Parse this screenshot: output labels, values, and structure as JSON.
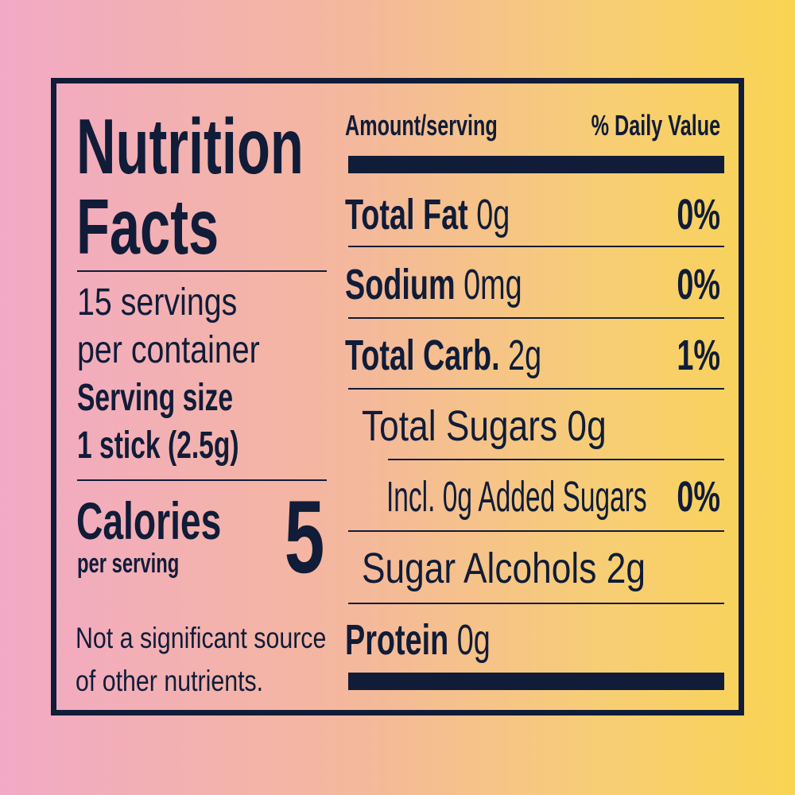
{
  "colors": {
    "ink": "#101c38",
    "background_left": "#f2a9c6",
    "background_right": "#f9d452"
  },
  "left": {
    "title_line1": "Nutrition",
    "title_line2": "Facts",
    "servings_line1": "15 servings",
    "servings_line2": "per container",
    "serving_size_label": "Serving size",
    "serving_size_value": "1 stick (2.5g)",
    "calories_label": "Calories",
    "calories_sub": "per serving",
    "calories_value": "5",
    "footnote_line1": "Not a significant source",
    "footnote_line2": "of other nutrients."
  },
  "right": {
    "header_amount": "Amount/serving",
    "header_dv": "% Daily Value",
    "rows": [
      {
        "name": "Total Fat",
        "amount": "0g",
        "dv": "0%"
      },
      {
        "name": "Sodium",
        "amount": "0mg",
        "dv": "0%"
      },
      {
        "name": "Total Carb.",
        "amount": "2g",
        "dv": "1%"
      },
      {
        "name": "Total Sugars 0g",
        "amount": "",
        "dv": ""
      },
      {
        "name": "Incl. 0g Added Sugars",
        "amount": "",
        "dv": "0%"
      },
      {
        "name": "Sugar Alcohols 2g",
        "amount": "",
        "dv": ""
      },
      {
        "name": "Protein",
        "amount": "0g",
        "dv": ""
      }
    ]
  }
}
